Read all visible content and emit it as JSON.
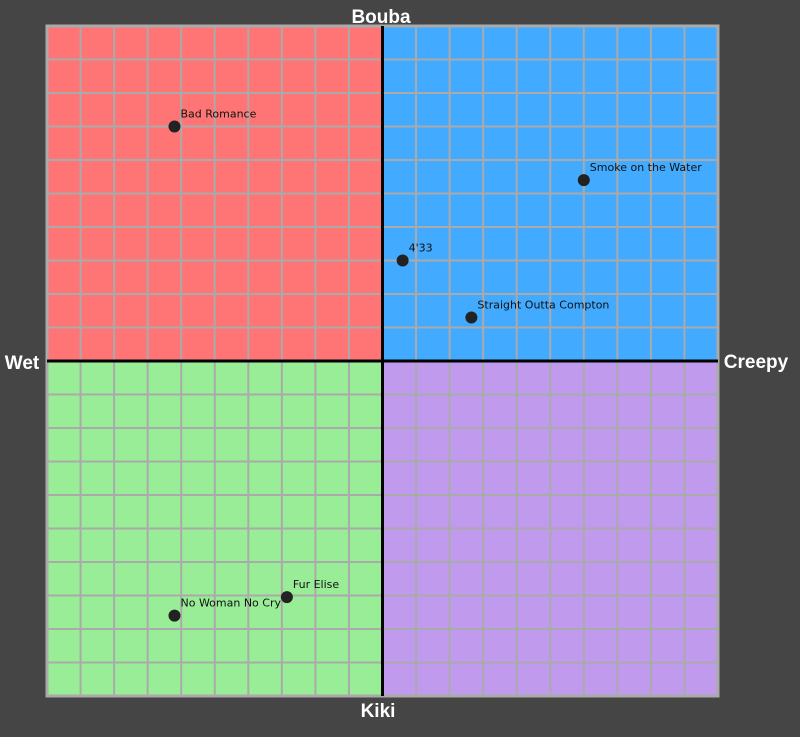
{
  "chart_data": {
    "type": "scatter",
    "title": "",
    "axes": {
      "top_label": "Bouba",
      "bottom_label": "Kiki",
      "left_label": "Wet",
      "right_label": "Creepy",
      "xlim": [
        -10,
        10
      ],
      "ylim": [
        -10,
        10
      ]
    },
    "grid": true,
    "quadrant_colors": {
      "top_left": "#ff7575",
      "top_right": "#42aaff",
      "bottom_left": "#9aed97",
      "bottom_right": "#c09aed"
    },
    "colors": {
      "background": "#454545",
      "grid_line": "#aaaaaa",
      "axis_line": "#000000",
      "point": "#222222"
    },
    "points": [
      {
        "label": "Bad Romance",
        "x": -6.2,
        "y": 7.0
      },
      {
        "label": "Smoke on the Water",
        "x": 6.0,
        "y": 5.4
      },
      {
        "label": "4'33",
        "x": 0.6,
        "y": 3.0
      },
      {
        "label": "Straight Outta Compton",
        "x": 2.65,
        "y": 1.3
      },
      {
        "label": "Fur Elise",
        "x": -2.85,
        "y": -7.05
      },
      {
        "label": "No Woman No Cry",
        "x": -6.2,
        "y": -7.6
      }
    ]
  }
}
